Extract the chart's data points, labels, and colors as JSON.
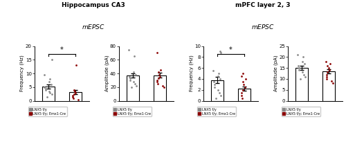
{
  "title_left": "Hippocampus CA3",
  "title_right": "mPFC layer 2, 3",
  "hip_freq_bar": [
    5.2,
    3.2
  ],
  "hip_freq_err": [
    0.8,
    0.7
  ],
  "hip_freq_ylim": [
    0,
    20
  ],
  "hip_freq_yticks": [
    0,
    5,
    10,
    15,
    20
  ],
  "hip_freq_ylabel": "Frequency (Hz)",
  "hip_freq_dots_ctrl": [
    1.5,
    2.5,
    3.0,
    3.5,
    4.0,
    4.5,
    5.0,
    6.0,
    7.0,
    8.0,
    9.5,
    15.0
  ],
  "hip_freq_dots_ko": [
    0.5,
    1.0,
    1.5,
    2.0,
    2.5,
    3.0,
    3.5,
    4.0,
    13.0
  ],
  "hip_amp_bar": [
    37.0,
    37.5
  ],
  "hip_amp_err": [
    3.0,
    3.5
  ],
  "hip_amp_ylim": [
    0,
    80
  ],
  "hip_amp_yticks": [
    0,
    20,
    40,
    60,
    80
  ],
  "hip_amp_ylabel": "Amplitude (pA)",
  "hip_amp_dots_ctrl": [
    20,
    22,
    25,
    28,
    30,
    33,
    35,
    38,
    42,
    65,
    75
  ],
  "hip_amp_dots_ko": [
    20,
    22,
    25,
    28,
    30,
    33,
    35,
    38,
    42,
    45,
    70
  ],
  "pfc_freq_bar": [
    3.8,
    2.2
  ],
  "pfc_freq_err": [
    0.6,
    0.4
  ],
  "pfc_freq_ylim": [
    0,
    10
  ],
  "pfc_freq_yticks": [
    0,
    2,
    4,
    6,
    8,
    10
  ],
  "pfc_freq_ylabel": "Frequency (Hz)",
  "pfc_freq_dots_ctrl": [
    0.5,
    1.0,
    1.5,
    2.0,
    2.5,
    3.0,
    3.5,
    4.0,
    4.5,
    5.0,
    5.5,
    8.8,
    9.0
  ],
  "pfc_freq_dots_ko": [
    0.5,
    1.0,
    1.5,
    2.0,
    2.5,
    3.0,
    3.5,
    4.0,
    4.5,
    5.0
  ],
  "pfc_amp_bar": [
    15.0,
    13.5
  ],
  "pfc_amp_err": [
    1.0,
    1.0
  ],
  "pfc_amp_ylim": [
    0,
    25
  ],
  "pfc_amp_yticks": [
    0,
    5,
    10,
    15,
    20,
    25
  ],
  "pfc_amp_ylabel": "Amplitude (pA)",
  "pfc_amp_dots_ctrl": [
    10,
    11,
    12,
    13,
    14,
    15,
    16,
    17,
    18,
    20,
    21
  ],
  "pfc_amp_dots_ko": [
    8,
    9,
    10,
    11,
    12,
    13,
    14,
    15,
    16,
    17,
    18
  ],
  "color_ctrl": "#888888",
  "color_ko": "#8B0000",
  "legend_labels": [
    "LNX5 f/y",
    "LNX5 f/y; Emx1-Cre"
  ]
}
